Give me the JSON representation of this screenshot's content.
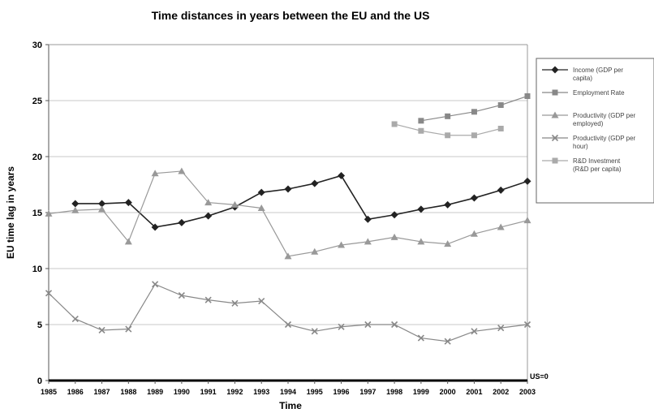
{
  "chart_data": {
    "type": "line",
    "title": "Time distances in years between the EU and the US",
    "xlabel": "Time",
    "ylabel": "EU time lag in years",
    "ylim": [
      0,
      30
    ],
    "yticks": [
      0,
      5,
      10,
      15,
      20,
      25,
      30
    ],
    "grid": true,
    "legend_position": "right",
    "baseline_label": "US=0",
    "categories": [
      "1985",
      "1986",
      "1987",
      "1988",
      "1989",
      "1990",
      "1991",
      "1992",
      "1993",
      "1994",
      "1995",
      "1996",
      "1997",
      "1998",
      "1999",
      "2000",
      "2001",
      "2002",
      "2003"
    ],
    "series": [
      {
        "name": "Income (GDP per capita)",
        "legend_lines": [
          "Income (GDP per",
          "capita)"
        ],
        "marker": "diamond",
        "color": "#222222",
        "values": [
          null,
          15.8,
          15.8,
          15.9,
          13.7,
          14.1,
          14.7,
          15.5,
          16.8,
          17.1,
          17.6,
          18.3,
          14.4,
          14.8,
          15.3,
          15.7,
          16.3,
          17.0,
          17.8
        ]
      },
      {
        "name": "Employment Rate",
        "legend_lines": [
          "Employment Rate"
        ],
        "marker": "square",
        "color": "#888888",
        "values": [
          null,
          null,
          null,
          null,
          null,
          null,
          null,
          null,
          null,
          null,
          null,
          null,
          null,
          null,
          23.2,
          23.6,
          24.0,
          24.6,
          25.4
        ]
      },
      {
        "name": "Productivity (GDP per employed)",
        "legend_lines": [
          "Productivity (GDP per",
          "employed)"
        ],
        "marker": "triangle",
        "color": "#999999",
        "values": [
          14.9,
          15.2,
          15.3,
          12.4,
          18.5,
          18.7,
          15.9,
          15.7,
          15.4,
          11.1,
          11.5,
          12.1,
          12.4,
          12.8,
          12.4,
          12.2,
          13.1,
          13.7,
          14.3
        ]
      },
      {
        "name": "Productivity (GDP per hour)",
        "legend_lines": [
          "Productivity (GDP per",
          "hour)"
        ],
        "marker": "x",
        "color": "#888888",
        "values": [
          7.8,
          5.5,
          4.5,
          4.6,
          8.6,
          7.6,
          7.2,
          6.9,
          7.1,
          5.0,
          4.4,
          4.8,
          5.0,
          5.0,
          3.8,
          3.5,
          4.4,
          4.7,
          5.0
        ]
      },
      {
        "name": "R&D Investment (R&D per capita)",
        "legend_lines": [
          "R&D Investment",
          "(R&D per capita)"
        ],
        "marker": "square",
        "color": "#aaaaaa",
        "values": [
          null,
          null,
          null,
          null,
          null,
          null,
          null,
          null,
          null,
          null,
          null,
          null,
          null,
          22.9,
          22.3,
          21.9,
          21.9,
          22.5,
          null
        ]
      }
    ]
  }
}
